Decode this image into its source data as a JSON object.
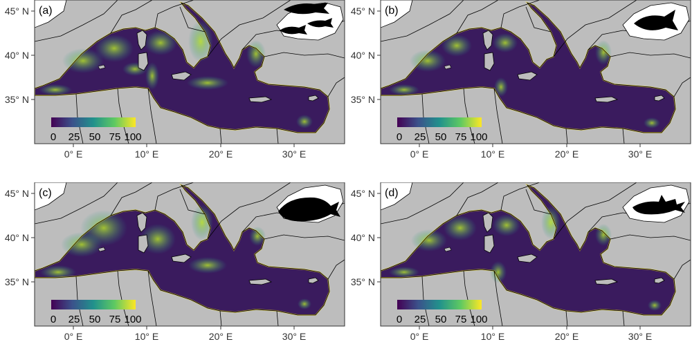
{
  "figure": {
    "axes": {
      "lat_ticks": [
        "45° N",
        "40° N",
        "35° N"
      ],
      "lon_ticks": [
        "0° E",
        "10° E",
        "20° E",
        "30° E"
      ]
    },
    "colorbar": {
      "ticks": [
        "0",
        "25",
        "50",
        "75",
        "100"
      ],
      "colors": [
        "#440154",
        "#3b528b",
        "#21918c",
        "#5ec962",
        "#fde725"
      ]
    },
    "land_color": "#bdbdbd",
    "panels": [
      {
        "label": "(a)",
        "icon": "fish-group-icon"
      },
      {
        "label": "(b)",
        "icon": "tuna-icon"
      },
      {
        "label": "(c)",
        "icon": "whale-icon"
      },
      {
        "label": "(d)",
        "icon": "shark-icon"
      }
    ]
  }
}
